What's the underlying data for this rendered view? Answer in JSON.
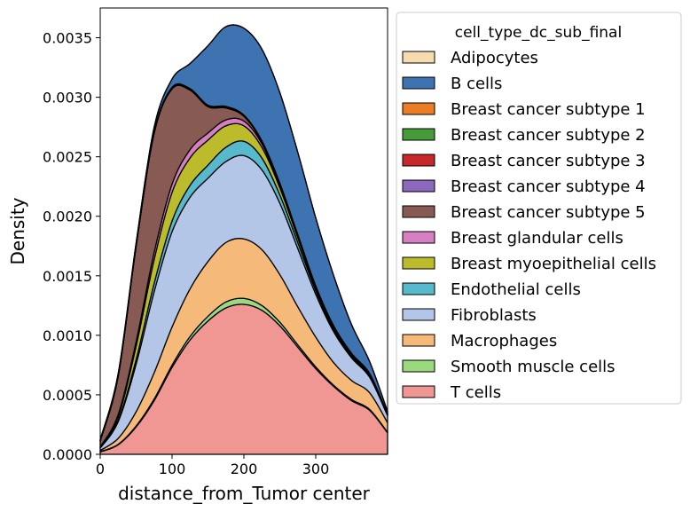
{
  "chart_data": {
    "type": "area",
    "stacked": true,
    "xlabel": "distance_from_Tumor center",
    "ylabel": "Density",
    "xlim": [
      0,
      400
    ],
    "ylim": [
      0,
      0.00375
    ],
    "x_ticks": [
      "0",
      "100",
      "200",
      "300"
    ],
    "x_tick_values": [
      0,
      100,
      200,
      300
    ],
    "y_ticks": [
      "0.0000",
      "0.0005",
      "0.0010",
      "0.0015",
      "0.0020",
      "0.0025",
      "0.0030",
      "0.0035"
    ],
    "y_tick_values": [
      0,
      0.0005,
      0.001,
      0.0015,
      0.002,
      0.0025,
      0.003,
      0.0035
    ],
    "grid": false,
    "legend": {
      "title": "cell_type_dc_sub_final",
      "placement": "right"
    },
    "x": [
      0,
      25,
      50,
      75,
      100,
      125,
      150,
      175,
      200,
      225,
      250,
      275,
      300,
      325,
      350,
      375,
      400
    ],
    "series": [
      {
        "name": "T cells",
        "color": "#f19793",
        "values": [
          2e-05,
          8e-05,
          0.00023,
          0.00045,
          0.00073,
          0.00096,
          0.00112,
          0.00123,
          0.00126,
          0.00121,
          0.00108,
          0.0009,
          0.00072,
          0.00057,
          0.00045,
          0.00037,
          0.00018
        ]
      },
      {
        "name": "Smooth muscle cells",
        "color": "#9bd97f",
        "values": [
          2e-06,
          4e-06,
          8e-06,
          1.4e-05,
          2e-05,
          3e-05,
          4e-05,
          5e-05,
          5e-05,
          4e-05,
          3e-05,
          2e-05,
          1.5e-05,
          1e-05,
          1e-05,
          8e-06,
          5e-06
        ]
      },
      {
        "name": "Macrophages",
        "color": "#f5b97a",
        "values": [
          1e-05,
          5e-05,
          0.00012,
          0.00022,
          0.00032,
          0.0004,
          0.00046,
          0.0005,
          0.0005,
          0.00047,
          0.0004,
          0.00032,
          0.00025,
          0.00019,
          0.00016,
          0.00014,
          8e-05
        ]
      },
      {
        "name": "Fibroblasts",
        "color": "#b3c6e8",
        "values": [
          2e-05,
          0.00014,
          0.0004,
          0.00068,
          0.0008,
          0.00077,
          0.0007,
          0.00068,
          0.0007,
          0.00067,
          0.0006,
          0.00049,
          0.00036,
          0.00026,
          0.00019,
          0.00013,
          6e-05
        ]
      },
      {
        "name": "Endothelial cells",
        "color": "#56b9cc",
        "values": [
          2e-06,
          1e-05,
          4e-05,
          7e-05,
          9e-05,
          0.0001,
          0.00011,
          0.00012,
          0.00012,
          0.0001,
          7e-05,
          5e-05,
          3e-05,
          2e-05,
          1.2e-05,
          8e-06,
          4e-06
        ]
      },
      {
        "name": "Breast myoepithelial cells",
        "color": "#bbbb2c",
        "values": [
          5e-06,
          3e-05,
          0.00011,
          0.0002,
          0.00024,
          0.00023,
          0.00021,
          0.00018,
          0.00013,
          9e-05,
          6e-05,
          4e-05,
          2e-05,
          1e-05,
          6e-06,
          4e-06,
          2e-06
        ]
      },
      {
        "name": "Breast glandular cells",
        "color": "#d67fc2",
        "values": [
          3e-06,
          2e-05,
          4e-05,
          6e-05,
          7e-05,
          7e-05,
          6e-05,
          5e-05,
          4e-05,
          3e-05,
          2e-05,
          1.5e-05,
          1e-05,
          8e-06,
          6e-06,
          4e-06,
          2e-06
        ]
      },
      {
        "name": "Breast cancer subtype 5",
        "color": "#875a53",
        "values": [
          5e-05,
          0.00032,
          0.0008,
          0.001,
          0.0008,
          0.0005,
          0.00022,
          0.0001,
          4e-05,
          1.5e-05,
          1e-05,
          5e-06,
          3e-06,
          2e-06,
          1e-06,
          1e-06,
          1e-06
        ]
      },
      {
        "name": "Breast cancer subtype 4",
        "color": "#8c69bc",
        "values": [
          5e-07,
          1e-06,
          2e-06,
          3e-06,
          3e-06,
          3e-06,
          3e-06,
          3e-06,
          2e-06,
          2e-06,
          2e-06,
          1e-06,
          1e-06,
          1e-06,
          1e-06,
          1e-06,
          5e-07
        ]
      },
      {
        "name": "Breast cancer subtype 3",
        "color": "#c6282a",
        "values": [
          5e-07,
          1e-06,
          2e-06,
          3e-06,
          3e-06,
          3e-06,
          3e-06,
          3e-06,
          2e-06,
          2e-06,
          2e-06,
          1e-06,
          1e-06,
          1e-06,
          1e-06,
          1e-06,
          5e-07
        ]
      },
      {
        "name": "Breast cancer subtype 2",
        "color": "#459b38",
        "values": [
          5e-07,
          1e-06,
          2e-06,
          3e-06,
          3e-06,
          3e-06,
          3e-06,
          3e-06,
          2e-06,
          2e-06,
          2e-06,
          1e-06,
          1e-06,
          1e-06,
          1e-06,
          1e-06,
          5e-07
        ]
      },
      {
        "name": "Breast cancer subtype 1",
        "color": "#ea7d25",
        "values": [
          5e-07,
          1e-06,
          2e-06,
          3e-06,
          4e-06,
          4e-06,
          4e-06,
          4e-06,
          4e-06,
          4e-06,
          4e-06,
          5e-06,
          6e-06,
          8e-06,
          1e-05,
          1.2e-05,
          5e-06
        ]
      },
      {
        "name": "B cells",
        "color": "#3e73b1",
        "values": [
          1e-05,
          2e-05,
          2e-05,
          4e-05,
          7e-05,
          0.00021,
          0.0005,
          0.00067,
          0.00073,
          0.00077,
          0.00076,
          0.00069,
          0.00057,
          0.00042,
          0.00024,
          0.0001,
          2e-05
        ]
      },
      {
        "name": "Adipocytes",
        "color": "#f5dbad",
        "values": [
          0,
          0,
          0,
          0,
          0,
          0,
          0,
          0,
          0,
          0,
          0,
          0,
          0,
          0,
          0,
          0,
          0
        ]
      }
    ],
    "legend_order": [
      "Adipocytes",
      "B cells",
      "Breast cancer subtype 1",
      "Breast cancer subtype 2",
      "Breast cancer subtype 3",
      "Breast cancer subtype 4",
      "Breast cancer subtype 5",
      "Breast glandular cells",
      "Breast myoepithelial cells",
      "Endothelial cells",
      "Fibroblasts",
      "Macrophages",
      "Smooth muscle cells",
      "T cells"
    ]
  }
}
